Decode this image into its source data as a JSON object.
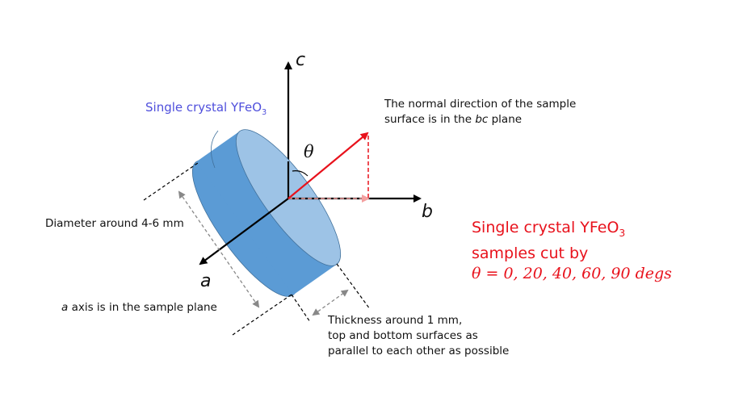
{
  "labels": {
    "axis_c": "c",
    "axis_b": "b",
    "axis_a": "a",
    "theta": "θ",
    "crystal_label": "Single crystal YFeO",
    "crystal_label_sub": "3",
    "normal_line1": "The normal direction of the sample",
    "normal_line2_pre": "surface is in the ",
    "normal_line2_em": "bc",
    "normal_line2_post": " plane",
    "diameter": "Diameter around 4-6 mm",
    "a_axis_em": "a",
    "a_axis_rest": " axis is in the sample plane",
    "thickness_line1": "Thickness around 1 mm,",
    "thickness_line2": "top and bottom surfaces as",
    "thickness_line3": "parallel to each other as possible",
    "summary_line1": "Single crystal YFeO",
    "summary_line1_sub": "3",
    "summary_line2": "samples cut by",
    "summary_line3": "θ = 0, 20, 40, 60, 90 degs"
  },
  "colors": {
    "cylinder_side": "#5b9bd5",
    "cylinder_face": "#9dc3e6",
    "normal_arrow": "#e8121c",
    "crystal_label": "#4f4fdc",
    "summary_text": "#e8121c"
  }
}
